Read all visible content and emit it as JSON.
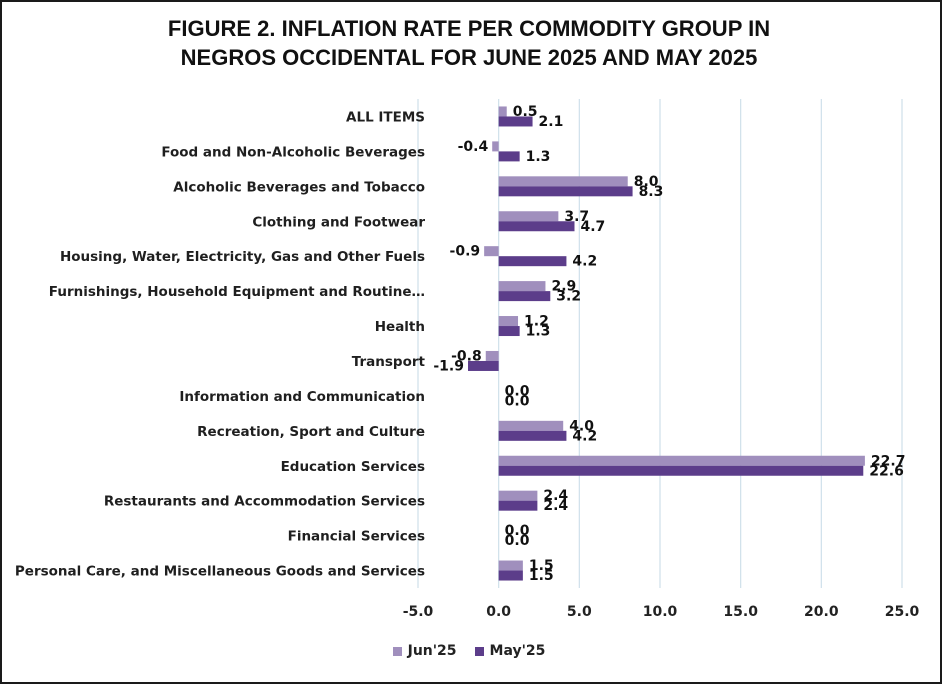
{
  "title_lines": [
    "FIGURE 2. INFLATION RATE PER COMMODITY GROUP IN",
    "NEGROS OCCIDENTAL FOR JUNE 2025 AND MAY 2025"
  ],
  "colors": {
    "jun": "#a08fbd",
    "may": "#5c3d8a",
    "grid": "#cfe0ea"
  },
  "chart_data": {
    "type": "bar",
    "orientation": "horizontal",
    "categories": [
      "ALL ITEMS",
      "Food and Non-Alcoholic Beverages",
      "Alcoholic Beverages and Tobacco",
      "Clothing and Footwear",
      "Housing, Water, Electricity, Gas and Other Fuels",
      "Furnishings, Household Equipment and Routine…",
      "Health",
      "Transport",
      "Information and Communication",
      "Recreation, Sport and Culture",
      "Education Services",
      "Restaurants and Accommodation Services",
      "Financial Services",
      "Personal Care, and Miscellaneous Goods and Services"
    ],
    "series": [
      {
        "name": "Jun'25",
        "values": [
          0.5,
          -0.4,
          8.0,
          3.7,
          -0.9,
          2.9,
          1.2,
          -0.8,
          0.0,
          4.0,
          22.7,
          2.4,
          0.0,
          1.5
        ]
      },
      {
        "name": "May'25",
        "values": [
          2.1,
          1.3,
          8.3,
          4.7,
          4.2,
          3.2,
          1.3,
          -1.9,
          0.0,
          4.2,
          22.6,
          2.4,
          0.0,
          1.5
        ]
      }
    ],
    "xlim": [
      -5,
      25
    ],
    "xticks": [
      "-5.0",
      "0.0",
      "5.0",
      "10.0",
      "15.0",
      "20.0",
      "25.0"
    ],
    "grid": true,
    "legend_position": "bottom"
  }
}
